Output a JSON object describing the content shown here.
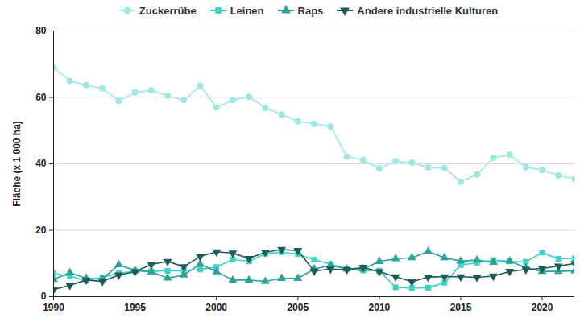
{
  "chart_data": {
    "type": "line",
    "y_label": "Fläche (x 1 000 ha)",
    "x": [
      1990,
      1991,
      1992,
      1993,
      1994,
      1995,
      1996,
      1997,
      1998,
      1999,
      2000,
      2001,
      2002,
      2003,
      2004,
      2005,
      2006,
      2007,
      2008,
      2009,
      2010,
      2011,
      2012,
      2013,
      2014,
      2015,
      2016,
      2017,
      2018,
      2019,
      2020,
      2021,
      2022
    ],
    "xlim": [
      1990,
      2022
    ],
    "xticks": [
      1990,
      1995,
      2000,
      2005,
      2010,
      2015,
      2020
    ],
    "ylim": [
      0,
      80
    ],
    "yticks": [
      0,
      20,
      40,
      60,
      80
    ],
    "grid": true,
    "legend": "top",
    "series": [
      {
        "name": "Zuckerrübe",
        "color": "#9fe8e2",
        "marker": "circle",
        "values": [
          69,
          65,
          63.7,
          62.7,
          59,
          61.5,
          62.2,
          60.5,
          59.2,
          63.5,
          57,
          59.2,
          60.2,
          56.8,
          54.8,
          52.8,
          52,
          51.3,
          42.2,
          41.2,
          38.6,
          40.8,
          40.4,
          38.9,
          38.7,
          34.6,
          36.8,
          41.8,
          42.7,
          39,
          38.1,
          36.5,
          35.5
        ]
      },
      {
        "name": "Leinen",
        "color": "#3cd3c6",
        "marker": "square",
        "values": [
          7,
          6.2,
          4.8,
          5.8,
          7,
          7.7,
          7.6,
          7.8,
          7.8,
          8.2,
          8.9,
          11.2,
          10.6,
          13,
          13.4,
          12.8,
          11.1,
          9.8,
          8.3,
          7.9,
          7.8,
          2.8,
          2.6,
          2.7,
          4.2,
          9.5,
          10.2,
          11,
          10.6,
          10.5,
          13.3,
          11.4,
          11.5
        ]
      },
      {
        "name": "Raps",
        "color": "#2aa39a",
        "marker": "triangle",
        "values": [
          5.2,
          7.2,
          5.5,
          5.3,
          9.6,
          7.9,
          7.5,
          5.6,
          6.5,
          9.8,
          7.5,
          5,
          5,
          4.6,
          5.5,
          5.5,
          8.3,
          9.4,
          8.4,
          8.3,
          10.6,
          11.4,
          11.7,
          13.6,
          11.7,
          10.7,
          11,
          10.3,
          10.7,
          8.7,
          7.6,
          7.6,
          7.8
        ]
      },
      {
        "name": "Andere industrielle Kulturen",
        "color": "#1d5b58",
        "marker": "triangle-down",
        "values": [
          2.1,
          3.4,
          5,
          4.6,
          6.5,
          7.5,
          9.7,
          10.6,
          9,
          12.1,
          13.5,
          13.1,
          11.5,
          13.4,
          14.2,
          13.9,
          7.7,
          8.3,
          8.1,
          8.8,
          7.5,
          6,
          4.5,
          5.9,
          6,
          6,
          5.8,
          6.2,
          7.6,
          8.2,
          8.5,
          9.2,
          10
        ]
      }
    ]
  }
}
